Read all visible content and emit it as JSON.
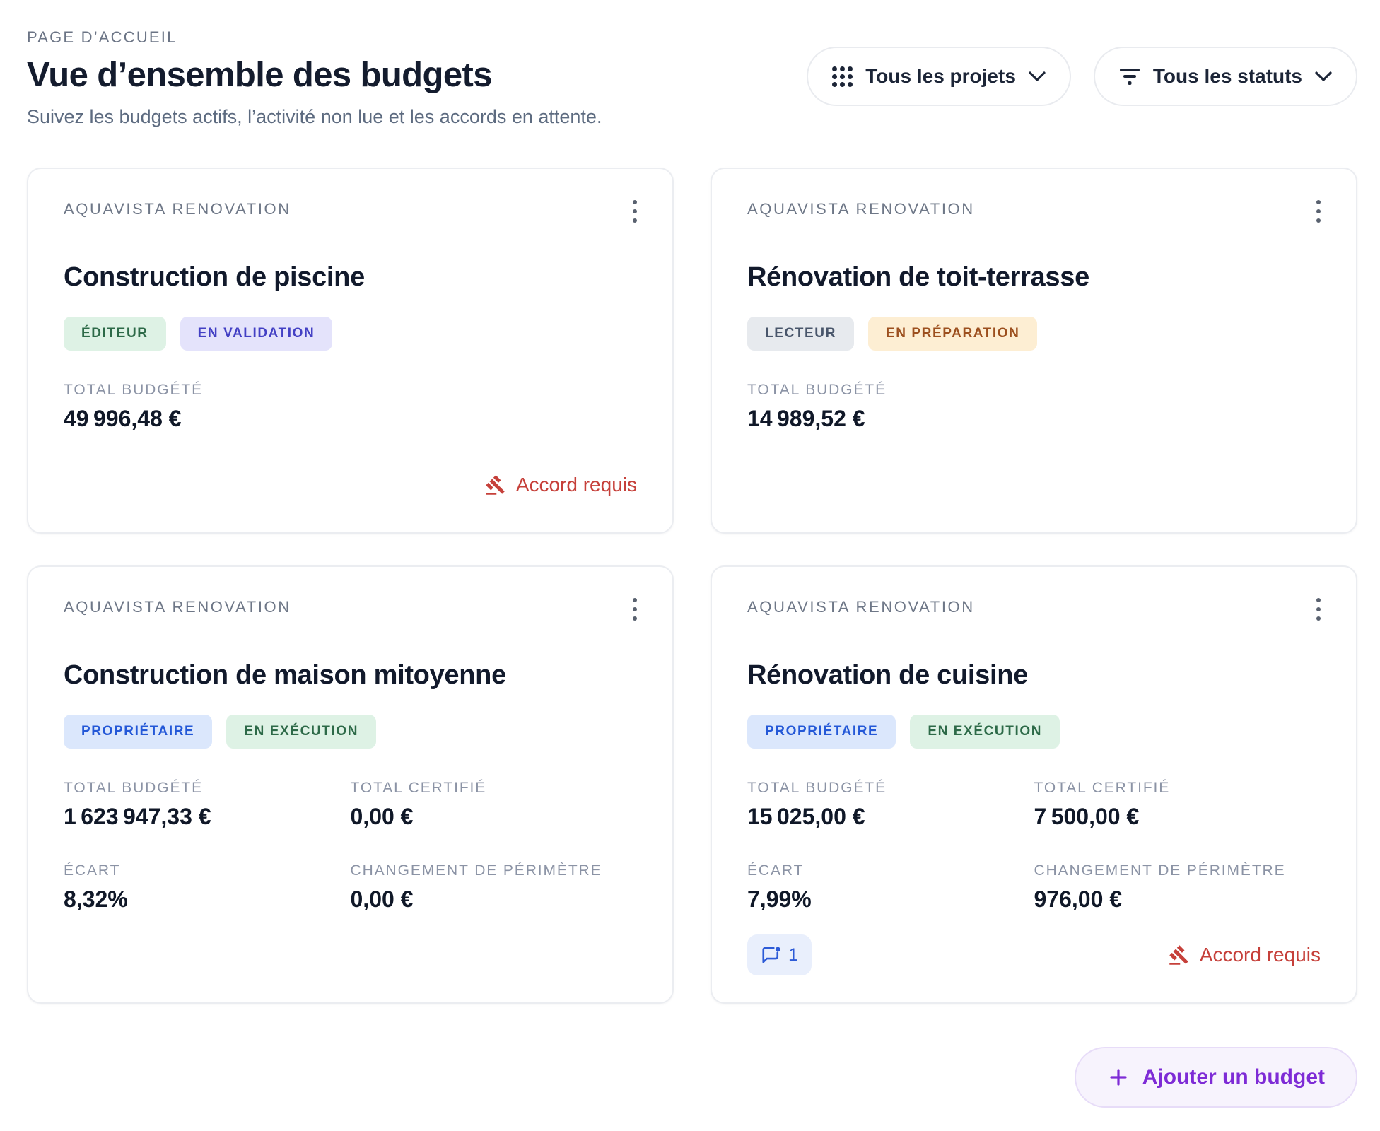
{
  "page": {
    "eyebrow": "PAGE D’ACCUEIL",
    "title": "Vue d’ensemble des budgets",
    "subtitle": "Suivez les budgets actifs, l’activité non lue et les accords en attente.",
    "filters": {
      "projects": {
        "label": "Tous les projets",
        "icon": "grid-icon"
      },
      "status": {
        "label": "Tous les statuts",
        "icon": "filter-icon"
      }
    },
    "add_button": {
      "label": "Ajouter un budget",
      "icon": "plus-icon"
    }
  },
  "labels": {
    "approval_required": "Accord requis"
  },
  "cards": [
    {
      "project": "AQUAVISTA RENOVATION",
      "title": "Construction de piscine",
      "badges": [
        {
          "label": "ÉDITEUR",
          "variant": "green"
        },
        {
          "label": "EN VALIDATION",
          "variant": "indigo"
        }
      ],
      "metrics": [
        {
          "label": "TOTAL BUDGÉTÉ",
          "value": "49 996,48 €"
        }
      ],
      "approval_required": true,
      "comment_count": null
    },
    {
      "project": "AQUAVISTA RENOVATION",
      "title": "Rénovation de toit-terrasse",
      "badges": [
        {
          "label": "LECTEUR",
          "variant": "gray"
        },
        {
          "label": "EN PRÉPARATION",
          "variant": "amber"
        }
      ],
      "metrics": [
        {
          "label": "TOTAL BUDGÉTÉ",
          "value": "14 989,52 €"
        }
      ],
      "approval_required": false,
      "comment_count": null
    },
    {
      "project": "AQUAVISTA RENOVATION",
      "title": "Construction de maison mitoyenne",
      "badges": [
        {
          "label": "PROPRIÉTAIRE",
          "variant": "blue"
        },
        {
          "label": "EN EXÉCUTION",
          "variant": "green"
        }
      ],
      "metrics": [
        {
          "label": "TOTAL BUDGÉTÉ",
          "value": "1 623 947,33 €"
        },
        {
          "label": "TOTAL CERTIFIÉ",
          "value": "0,00 €"
        },
        {
          "label": "ÉCART",
          "value": "8,32%"
        },
        {
          "label": "CHANGEMENT DE PÉRIMÈTRE",
          "value": "0,00 €"
        }
      ],
      "approval_required": false,
      "comment_count": null
    },
    {
      "project": "AQUAVISTA RENOVATION",
      "title": "Rénovation de cuisine",
      "badges": [
        {
          "label": "PROPRIÉTAIRE",
          "variant": "blue"
        },
        {
          "label": "EN EXÉCUTION",
          "variant": "green"
        }
      ],
      "metrics": [
        {
          "label": "TOTAL BUDGÉTÉ",
          "value": "15 025,00 €"
        },
        {
          "label": "TOTAL CERTIFIÉ",
          "value": "7 500,00 €"
        },
        {
          "label": "ÉCART",
          "value": "7,99%"
        },
        {
          "label": "CHANGEMENT DE PÉRIMÈTRE",
          "value": "976,00 €"
        }
      ],
      "approval_required": true,
      "comment_count": "1"
    }
  ],
  "colors": {
    "accent_purple": "#7e2bd6",
    "approval_red": "#c6403a",
    "comment_chip_bg": "#e9effc",
    "comment_chip_text": "#2d5bd7",
    "badge_green_bg": "#def2e5",
    "badge_green_text": "#2d6a48",
    "badge_indigo_bg": "#e4e3fb",
    "badge_indigo_text": "#4340c4",
    "badge_gray_bg": "#e7eaee",
    "badge_gray_text": "#49566b",
    "badge_amber_bg": "#fdeed3",
    "badge_amber_text": "#9c4f1e",
    "badge_blue_bg": "#dbe7fc",
    "badge_blue_text": "#2458d7"
  }
}
